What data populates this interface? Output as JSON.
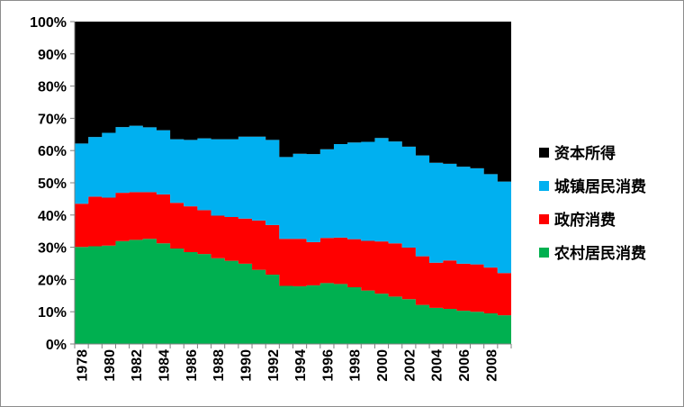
{
  "chart_data": {
    "type": "area",
    "stacked": true,
    "normalized": true,
    "x": [
      1978,
      1979,
      1980,
      1981,
      1982,
      1983,
      1984,
      1985,
      1986,
      1987,
      1988,
      1989,
      1990,
      1991,
      1992,
      1993,
      1994,
      1995,
      1996,
      1997,
      1998,
      1999,
      2000,
      2001,
      2002,
      2003,
      2004,
      2005,
      2006,
      2007,
      2008,
      2009
    ],
    "x_tick_labels": [
      "1978",
      "1980",
      "1982",
      "1984",
      "1986",
      "1988",
      "1990",
      "1992",
      "1994",
      "1996",
      "1998",
      "2000",
      "2002",
      "2004",
      "2006",
      "2008"
    ],
    "y_tick_labels": [
      "0%",
      "10%",
      "20%",
      "30%",
      "40%",
      "50%",
      "60%",
      "70%",
      "80%",
      "90%",
      "100%"
    ],
    "ylim": [
      0,
      100
    ],
    "legend_position": "right",
    "series": [
      {
        "name": "农村居民消费",
        "color": "#00b050",
        "values": [
          30.1,
          30.3,
          30.5,
          31.9,
          32.3,
          32.6,
          31.2,
          29.6,
          28.5,
          27.9,
          26.6,
          25.8,
          24.9,
          23.0,
          21.5,
          18.0,
          17.9,
          18.2,
          18.9,
          18.6,
          17.6,
          16.6,
          15.6,
          14.7,
          13.9,
          12.1,
          11.2,
          10.9,
          10.3,
          10.0,
          9.5,
          8.9
        ]
      },
      {
        "name": "政府消费",
        "color": "#ff0000",
        "values": [
          13.4,
          15.4,
          14.9,
          15.0,
          14.8,
          14.5,
          15.2,
          14.2,
          14.2,
          13.6,
          13.2,
          13.6,
          14.0,
          15.3,
          15.4,
          14.6,
          14.7,
          13.4,
          14.0,
          14.4,
          14.9,
          15.4,
          16.2,
          16.5,
          16.0,
          15.1,
          14.0,
          15.0,
          14.6,
          14.7,
          14.2,
          13.1
        ]
      },
      {
        "name": "城镇居民消费",
        "color": "#00b0f0",
        "values": [
          18.7,
          18.5,
          20.1,
          20.4,
          20.6,
          20.1,
          19.9,
          19.7,
          20.6,
          22.3,
          23.7,
          24.1,
          25.4,
          26.0,
          26.4,
          25.4,
          26.4,
          27.3,
          27.5,
          29.0,
          30.0,
          30.7,
          32.1,
          31.6,
          31.3,
          31.3,
          31.0,
          30.0,
          30.1,
          29.8,
          29.0,
          28.4
        ]
      },
      {
        "name": "资本所得",
        "color": "#000000",
        "values": [
          37.8,
          35.8,
          34.5,
          32.7,
          32.3,
          32.8,
          33.7,
          36.5,
          36.7,
          36.2,
          36.5,
          36.5,
          35.7,
          35.7,
          36.7,
          42.0,
          41.0,
          41.1,
          39.6,
          38.0,
          37.5,
          37.3,
          36.1,
          37.2,
          38.8,
          41.5,
          43.8,
          44.1,
          45.0,
          45.5,
          47.3,
          49.6
        ]
      }
    ]
  }
}
